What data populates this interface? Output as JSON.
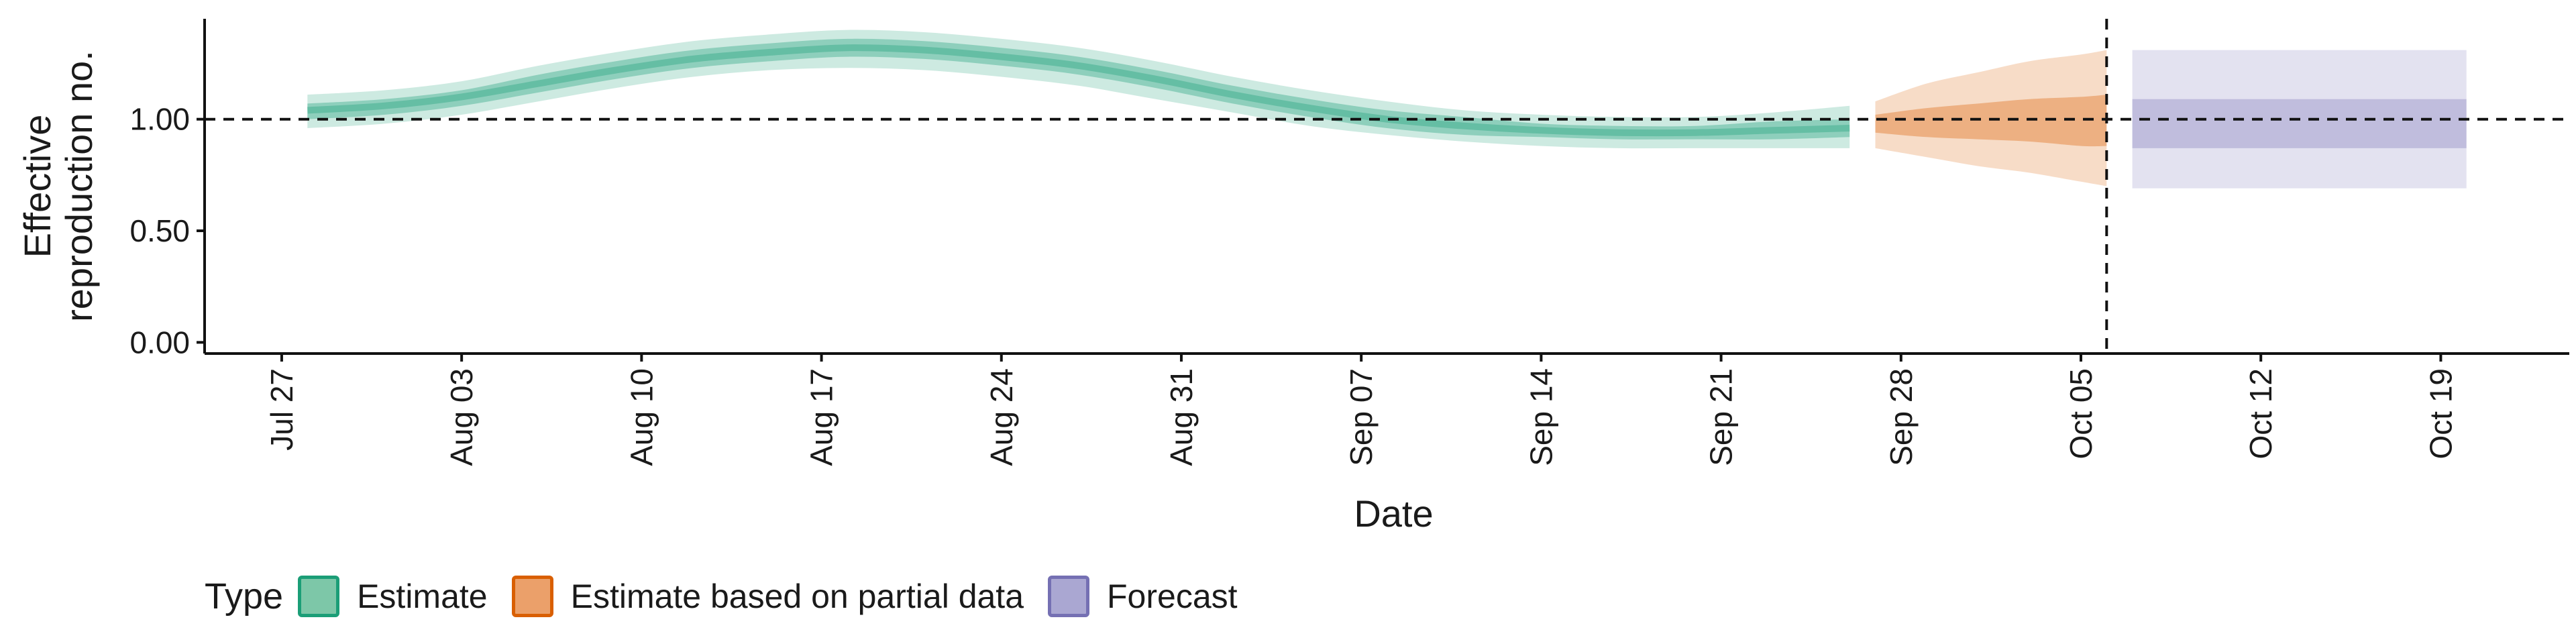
{
  "chart_data": {
    "type": "area",
    "xlabel": "Date",
    "ylabel": "Effective\nreproduction no.",
    "x_ticks": [
      "Jul 27",
      "Aug 03",
      "Aug 10",
      "Aug 17",
      "Aug 24",
      "Aug 31",
      "Sep 07",
      "Sep 14",
      "Sep 21",
      "Sep 28",
      "Oct 05",
      "Oct 12",
      "Oct 19"
    ],
    "y_ticks": [
      "0.00",
      "0.50",
      "1.00"
    ],
    "ylim": [
      -0.05,
      1.45
    ],
    "xlim": [
      "2020-07-24",
      "2020-10-24"
    ],
    "reference_line_y": 1.0,
    "reference_line_x": "2020-10-06",
    "legend": {
      "title": "Type",
      "position": "bottom-left",
      "entries": [
        {
          "label": "Estimate",
          "fill": "#7dc7a8",
          "border": "#1b9e77"
        },
        {
          "label": "Estimate based on partial data",
          "fill": "#eba06a",
          "border": "#d95f02"
        },
        {
          "label": "Forecast",
          "fill": "#aaa7d2",
          "border": "#7570b3"
        }
      ]
    },
    "series": [
      {
        "name": "Estimate",
        "color": "#1b9e77",
        "dates": [
          "2020-07-28",
          "2020-07-31",
          "2020-08-03",
          "2020-08-06",
          "2020-08-09",
          "2020-08-12",
          "2020-08-15",
          "2020-08-18",
          "2020-08-21",
          "2020-08-24",
          "2020-08-27",
          "2020-08-30",
          "2020-09-02",
          "2020-09-05",
          "2020-09-08",
          "2020-09-11",
          "2020-09-14",
          "2020-09-17",
          "2020-09-20",
          "2020-09-23",
          "2020-09-26"
        ],
        "median": [
          1.04,
          1.06,
          1.1,
          1.16,
          1.22,
          1.27,
          1.3,
          1.32,
          1.31,
          1.28,
          1.24,
          1.18,
          1.11,
          1.05,
          1.0,
          0.97,
          0.95,
          0.94,
          0.94,
          0.95,
          0.96
        ],
        "ci90_lower": [
          0.96,
          0.98,
          1.02,
          1.08,
          1.14,
          1.19,
          1.22,
          1.23,
          1.22,
          1.19,
          1.15,
          1.09,
          1.03,
          0.97,
          0.93,
          0.9,
          0.88,
          0.87,
          0.87,
          0.87,
          0.87
        ],
        "ci90_upper": [
          1.11,
          1.13,
          1.17,
          1.24,
          1.3,
          1.35,
          1.38,
          1.4,
          1.39,
          1.36,
          1.32,
          1.26,
          1.19,
          1.13,
          1.08,
          1.04,
          1.02,
          1.01,
          1.01,
          1.03,
          1.06
        ],
        "ci50_lower": [
          1.0,
          1.02,
          1.06,
          1.12,
          1.18,
          1.23,
          1.26,
          1.28,
          1.27,
          1.24,
          1.2,
          1.14,
          1.07,
          1.01,
          0.96,
          0.93,
          0.92,
          0.91,
          0.91,
          0.91,
          0.92
        ],
        "ci50_upper": [
          1.07,
          1.09,
          1.13,
          1.2,
          1.26,
          1.31,
          1.34,
          1.36,
          1.35,
          1.32,
          1.28,
          1.22,
          1.15,
          1.09,
          1.04,
          1.01,
          0.98,
          0.97,
          0.97,
          0.99,
          1.0
        ]
      },
      {
        "name": "Estimate based on partial data",
        "color": "#d95f02",
        "dates": [
          "2020-09-27",
          "2020-09-29",
          "2020-10-01",
          "2020-10-03",
          "2020-10-05",
          "2020-10-06"
        ],
        "ci90_lower": [
          0.87,
          0.83,
          0.79,
          0.76,
          0.72,
          0.7
        ],
        "ci90_upper": [
          1.08,
          1.16,
          1.21,
          1.26,
          1.29,
          1.31
        ],
        "ci50_lower": [
          0.94,
          0.92,
          0.91,
          0.9,
          0.88,
          0.88
        ],
        "ci50_upper": [
          1.02,
          1.05,
          1.07,
          1.09,
          1.1,
          1.11
        ]
      },
      {
        "name": "Forecast",
        "color": "#7570b3",
        "dates": [
          "2020-10-07",
          "2020-10-20"
        ],
        "ci90_lower": [
          0.69,
          0.69
        ],
        "ci90_upper": [
          1.31,
          1.31
        ],
        "ci50_lower": [
          0.87,
          0.87
        ],
        "ci50_upper": [
          1.09,
          1.09
        ]
      }
    ]
  }
}
